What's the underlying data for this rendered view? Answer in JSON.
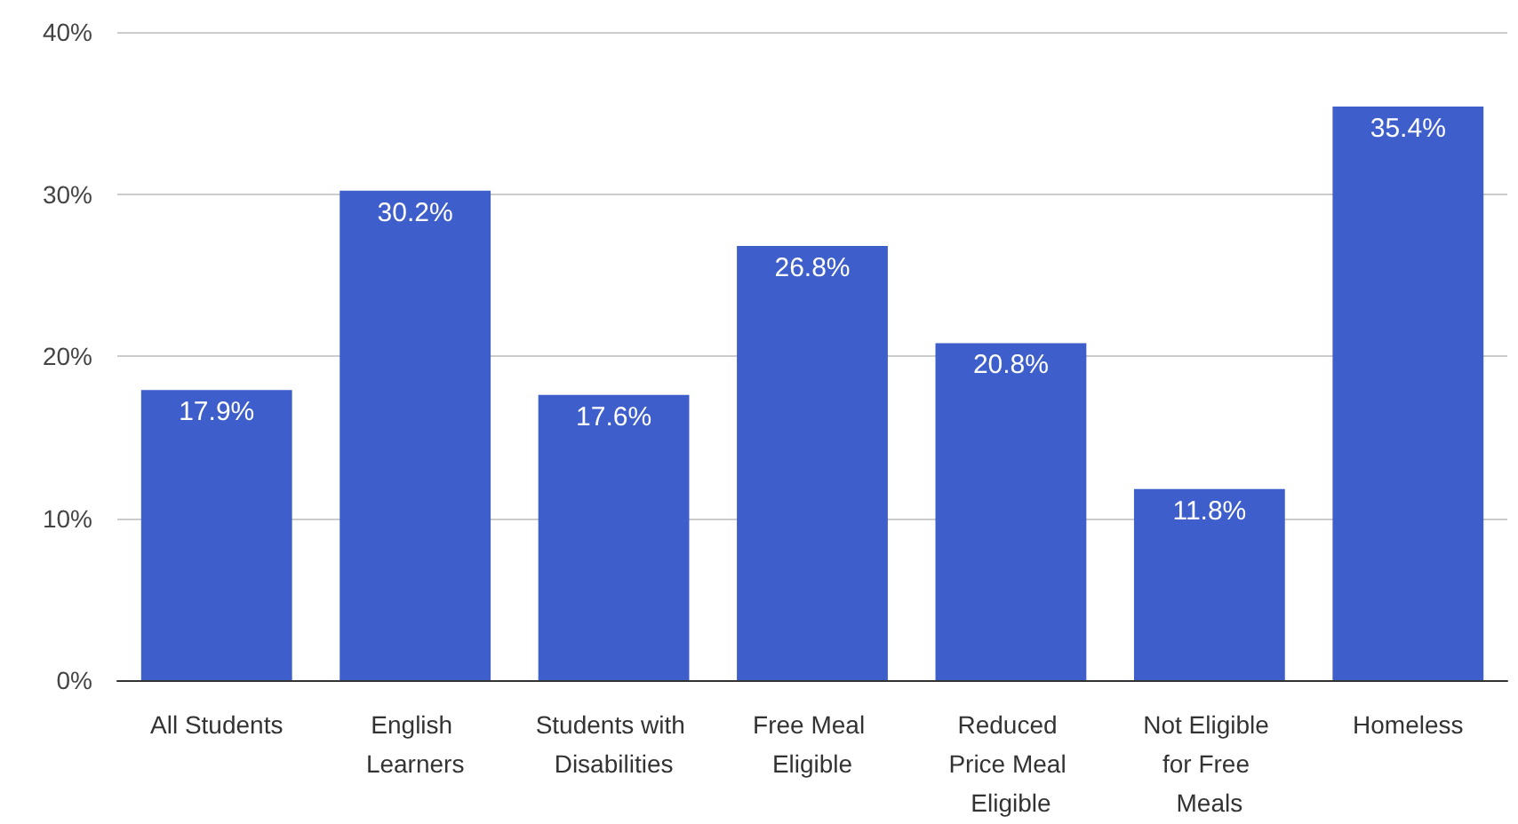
{
  "chart_data": {
    "type": "bar",
    "categories": [
      "All Students",
      "English Learners",
      "Students with Disabilities",
      "Free Meal Eligible",
      "Reduced Price Meal Eligible",
      "Not Eligible for Free Meals",
      "Homeless"
    ],
    "values": [
      17.9,
      30.2,
      17.6,
      26.8,
      20.8,
      11.8,
      35.4
    ],
    "value_labels": [
      "17.9%",
      "30.2%",
      "17.6%",
      "26.8%",
      "20.8%",
      "11.8%",
      "35.4%"
    ],
    "color": "#3e5fcb",
    "ylim": [
      0,
      40
    ],
    "yticks": [
      {
        "value": 0,
        "label": "0%"
      },
      {
        "value": 10,
        "label": "10%"
      },
      {
        "value": 20,
        "label": "20%"
      },
      {
        "value": 30,
        "label": "30%"
      },
      {
        "value": 40,
        "label": "40%"
      }
    ],
    "grid": "y"
  }
}
